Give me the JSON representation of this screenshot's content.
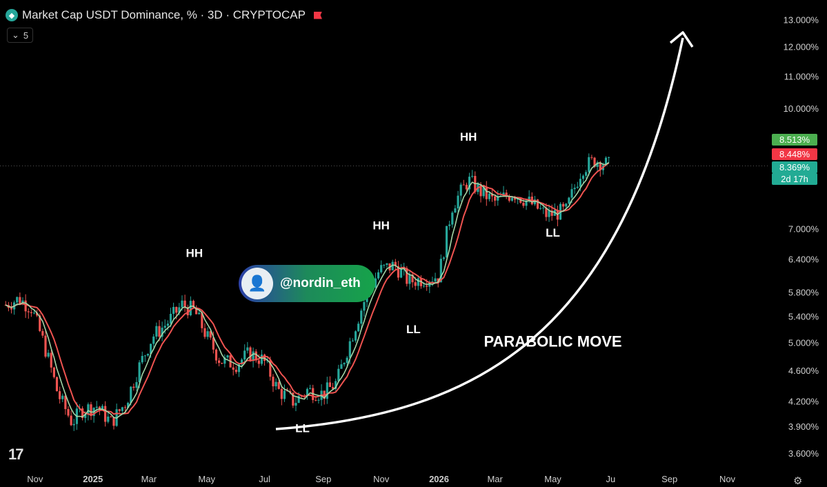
{
  "header": {
    "title": "Market Cap USDT Dominance, % · 3D · CRYPTOCAP",
    "indicator_count": "5",
    "logo_icon": "diamond-icon"
  },
  "badge": {
    "handle": "@nordin_eth"
  },
  "chart_data": {
    "type": "candlestick",
    "y_scale": "log",
    "ylim": [
      3.5,
      13.2
    ],
    "y_ticks": [
      "13.000%",
      "12.000%",
      "11.000%",
      "10.000%",
      "7.000%",
      "6.400%",
      "5.800%",
      "5.400%",
      "5.000%",
      "4.600%",
      "4.200%",
      "3.900%",
      "3.600%"
    ],
    "y_tick_values": [
      13.0,
      12.0,
      11.0,
      10.0,
      7.0,
      6.4,
      5.8,
      5.4,
      5.0,
      4.6,
      4.2,
      3.9,
      3.6
    ],
    "x_ticks": [
      "Nov",
      "2025",
      "Mar",
      "May",
      "Jul",
      "Sep",
      "Nov",
      "2026",
      "Mar",
      "May",
      "Ju",
      "Sep",
      "Nov"
    ],
    "x_tick_positions": [
      "2024-11-01",
      "2025-01-01",
      "2025-03-01",
      "2025-05-01",
      "2025-07-01",
      "2025-09-01",
      "2025-11-01",
      "2026-01-01",
      "2026-03-01",
      "2026-05-01",
      "2026-07-01",
      "2026-09-01",
      "2026-11-01"
    ],
    "price_path": [
      [
        "2024-10-01",
        5.6
      ],
      [
        "2024-10-15",
        5.7
      ],
      [
        "2024-10-28",
        5.55
      ],
      [
        "2024-11-10",
        5.0
      ],
      [
        "2024-11-25",
        4.3
      ],
      [
        "2024-12-10",
        3.95
      ],
      [
        "2024-12-20",
        4.1
      ],
      [
        "2025-01-05",
        4.15
      ],
      [
        "2025-01-20",
        3.95
      ],
      [
        "2025-02-05",
        4.2
      ],
      [
        "2025-02-20",
        4.7
      ],
      [
        "2025-03-05",
        5.1
      ],
      [
        "2025-03-20",
        5.3
      ],
      [
        "2025-04-05",
        5.6
      ],
      [
        "2025-04-18",
        5.5
      ],
      [
        "2025-05-01",
        5.1
      ],
      [
        "2025-05-15",
        4.75
      ],
      [
        "2025-06-01",
        4.7
      ],
      [
        "2025-06-15",
        4.85
      ],
      [
        "2025-06-30",
        4.75
      ],
      [
        "2025-07-15",
        4.35
      ],
      [
        "2025-08-01",
        4.2
      ],
      [
        "2025-08-15",
        4.35
      ],
      [
        "2025-09-01",
        4.3
      ],
      [
        "2025-09-15",
        4.45
      ],
      [
        "2025-10-01",
        5.1
      ],
      [
        "2025-10-15",
        5.7
      ],
      [
        "2025-10-30",
        6.2
      ],
      [
        "2025-11-15",
        6.3
      ],
      [
        "2025-11-30",
        6.0
      ],
      [
        "2026-01-01",
        6.1
      ],
      [
        "2026-01-15",
        7.5
      ],
      [
        "2026-02-01",
        8.1
      ],
      [
        "2026-02-15",
        7.8
      ],
      [
        "2026-03-01",
        7.6
      ],
      [
        "2026-03-20",
        7.8
      ],
      [
        "2026-04-05",
        7.6
      ],
      [
        "2026-04-25",
        7.3
      ],
      [
        "2026-05-15",
        7.4
      ],
      [
        "2026-06-01",
        8.4
      ],
      [
        "2026-06-15",
        8.6
      ],
      [
        "2026-07-01",
        8.45
      ]
    ],
    "last_price": "8.448%",
    "ma_fast": "8.513%",
    "ma_slow": "8.369%",
    "countdown": "2d 17h",
    "annotations": [
      {
        "text": "HH",
        "date": "2025-04-18",
        "value": 6.45
      },
      {
        "text": "HH",
        "date": "2025-11-01",
        "value": 7.0
      },
      {
        "text": "HH",
        "date": "2026-02-01",
        "value": 9.1
      },
      {
        "text": "LL",
        "date": "2025-08-10",
        "value": 3.84
      },
      {
        "text": "LL",
        "date": "2025-12-05",
        "value": 5.15
      },
      {
        "text": "LL",
        "date": "2026-05-01",
        "value": 6.85
      },
      {
        "text": "PARABOLIC MOVE",
        "date": "2026-05-01",
        "value": 4.95
      }
    ],
    "colors": {
      "up": "#26a69a",
      "down": "#ef5350",
      "ma_fast": "#a5d6a7",
      "ma_slow": "#ef5350",
      "tag_up": "#22ab94",
      "tag_down": "#f23645"
    }
  }
}
